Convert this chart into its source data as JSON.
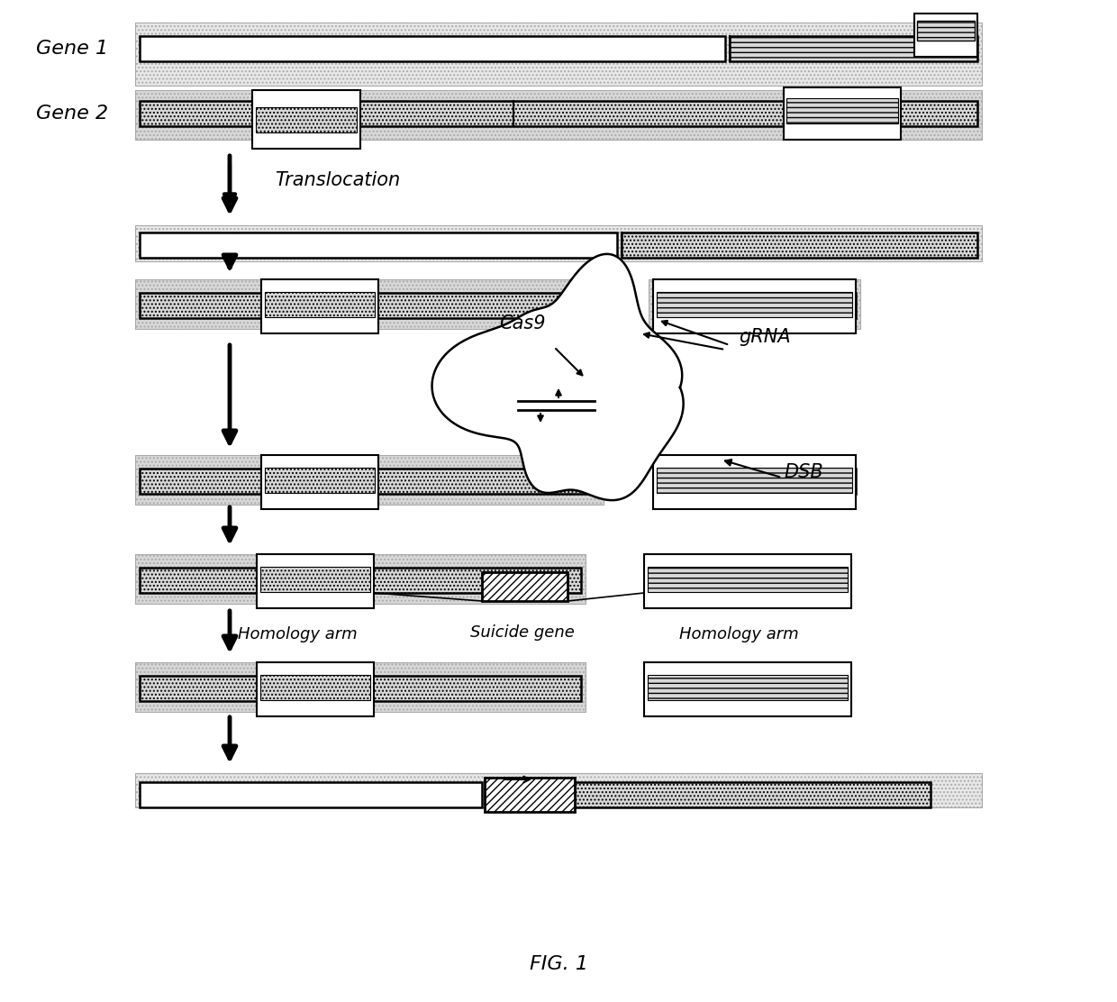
{
  "title": "FIG. 1",
  "bg": "#ffffff",
  "gene1_label": "Gene 1",
  "gene2_label": "Gene 2",
  "translocation_label": "Translocation",
  "cas9_label": "Cas9",
  "grna_label": "gRNA",
  "dsb_label": "DSB",
  "homology_arm_label": "Homology arm",
  "suicide_gene_label": "Suicide gene",
  "fig_w": 12.4,
  "fig_h": 11.12,
  "dpi": 100
}
